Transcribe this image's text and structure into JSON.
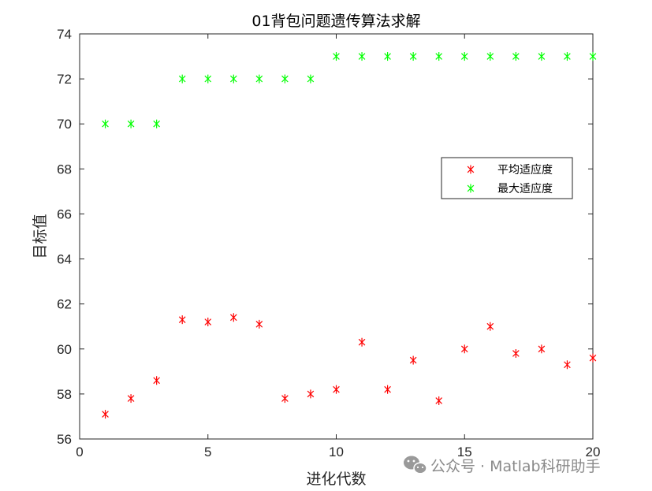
{
  "chart_data": {
    "type": "scatter",
    "title": "01背包问题遗传算法求解",
    "xlabel": "进化代数",
    "ylabel": "目标值",
    "xlim": [
      0,
      20
    ],
    "ylim": [
      56,
      74
    ],
    "xticks": [
      0,
      5,
      10,
      15,
      20
    ],
    "yticks": [
      56,
      58,
      60,
      62,
      64,
      66,
      68,
      70,
      72,
      74
    ],
    "grid": false,
    "legend_position": "right",
    "marker": "asterisk",
    "series": [
      {
        "name": "平均适应度",
        "color": "#ff0000",
        "x": [
          1,
          2,
          3,
          4,
          5,
          6,
          7,
          8,
          9,
          10,
          11,
          12,
          13,
          14,
          15,
          16,
          17,
          18,
          19,
          20
        ],
        "y": [
          57.1,
          57.8,
          58.6,
          61.3,
          61.2,
          61.4,
          61.1,
          57.8,
          58.0,
          58.2,
          60.3,
          58.2,
          59.5,
          57.7,
          60.0,
          61.0,
          59.8,
          60.0,
          59.3,
          59.6
        ]
      },
      {
        "name": "最大适应度",
        "color": "#00ff00",
        "x": [
          1,
          2,
          3,
          4,
          5,
          6,
          7,
          8,
          9,
          10,
          11,
          12,
          13,
          14,
          15,
          16,
          17,
          18,
          19,
          20
        ],
        "y": [
          70,
          70,
          70,
          72,
          72,
          72,
          72,
          72,
          72,
          73,
          73,
          73,
          73,
          73,
          73,
          73,
          73,
          73,
          73,
          73
        ]
      }
    ]
  },
  "watermark": {
    "text": "公众号 · Matlab科研助手",
    "icon": "wechat-icon",
    "color": "#8a8a8a"
  }
}
